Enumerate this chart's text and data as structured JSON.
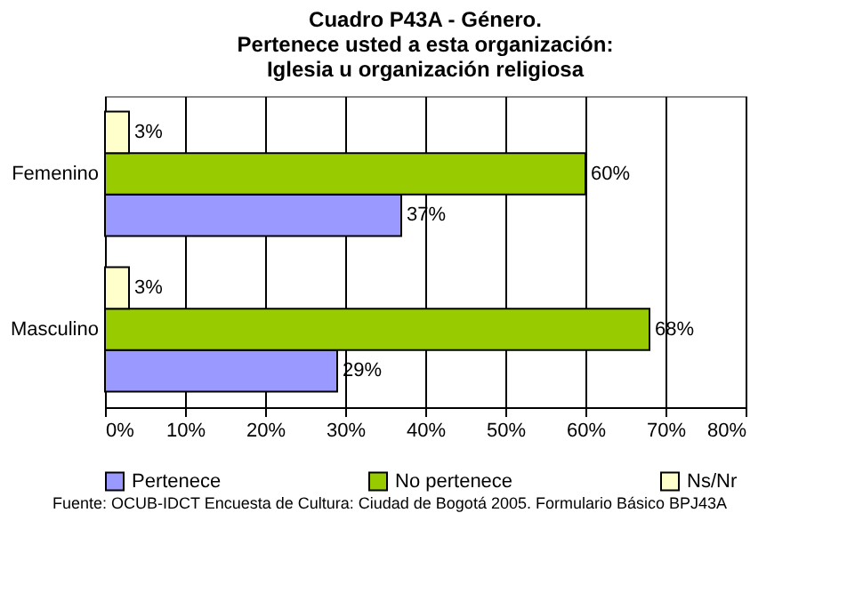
{
  "chart_data": {
    "type": "bar",
    "orientation": "horizontal",
    "title": "Cuadro P43A - Género.\nPertenece usted a esta organización:\nIglesia u organización religiosa",
    "categories": [
      "Femenino",
      "Masculino"
    ],
    "series": [
      {
        "name": "Pertenece",
        "color": "#9999ff",
        "values": [
          37,
          29
        ],
        "value_labels": [
          "37%",
          "29%"
        ]
      },
      {
        "name": "No pertenece",
        "color": "#99cc00",
        "values": [
          60,
          68
        ],
        "value_labels": [
          "60%",
          "68%"
        ]
      },
      {
        "name": "Ns/Nr",
        "color": "#ffffcc",
        "values": [
          3,
          3
        ],
        "value_labels": [
          "3%",
          "3%"
        ]
      }
    ],
    "xlim": [
      0,
      80
    ],
    "xticks": [
      {
        "value": 0,
        "label": "0%"
      },
      {
        "value": 10,
        "label": "10%"
      },
      {
        "value": 20,
        "label": "20%"
      },
      {
        "value": 30,
        "label": "30%"
      },
      {
        "value": 40,
        "label": "40%"
      },
      {
        "value": 50,
        "label": "50%"
      },
      {
        "value": 60,
        "label": "60%"
      },
      {
        "value": 70,
        "label": "70%"
      },
      {
        "value": 80,
        "label": "80%"
      }
    ],
    "grid": "x",
    "legend": "bottom",
    "annotations": [
      "Fuente: OCUB-IDCT Encuesta de Cultura: Ciudad de Bogotá 2005. Formulario Básico BPJ43A"
    ]
  }
}
